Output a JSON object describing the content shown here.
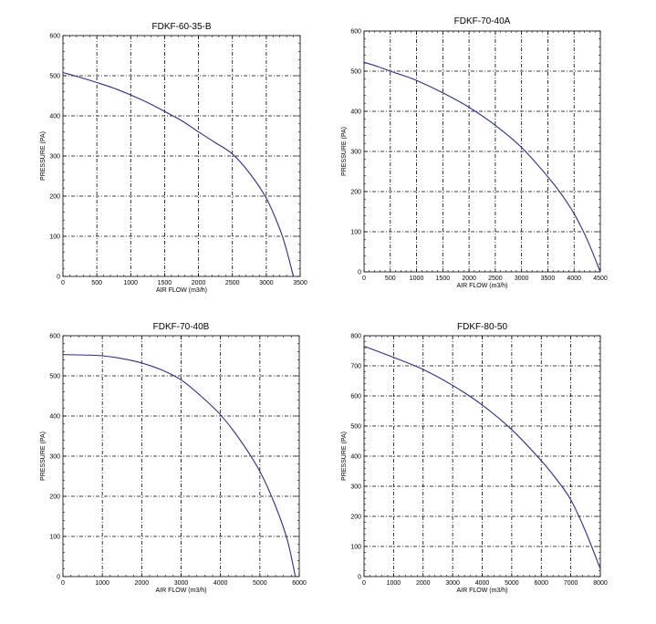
{
  "chart_data": [
    {
      "type": "line",
      "title": "FDKF-60-35-B",
      "xlabel": "AIR FLOW (m3/h)",
      "ylabel": "PRESSURE (PA)",
      "xlim": [
        0,
        3500
      ],
      "ylim": [
        0,
        600
      ],
      "xticks": [
        0,
        500,
        1000,
        1500,
        2000,
        2500,
        3000,
        3500
      ],
      "yticks": [
        0,
        100,
        200,
        300,
        400,
        500,
        600
      ],
      "xtick_labels": [
        "0",
        "500",
        "1000",
        "1500",
        "2000",
        "2500",
        "3000",
        "3500"
      ],
      "ytick_labels": [
        "0",
        "100",
        "200",
        "300",
        "400",
        "500",
        "600"
      ],
      "grid": true,
      "series": [
        {
          "x": [
            0,
            250,
            500,
            750,
            1000,
            1250,
            1500,
            1750,
            2000,
            2250,
            2500,
            2750,
            3000,
            3200,
            3300,
            3400
          ],
          "y": [
            508,
            496,
            483,
            469,
            452,
            433,
            411,
            388,
            360,
            333,
            305,
            258,
            195,
            118,
            65,
            0
          ]
        }
      ]
    },
    {
      "type": "line",
      "title": "FDKF-70-40A",
      "xlabel": "AIR FLOW (m3/h)",
      "ylabel": "PRESSURE (PA)",
      "xlim": [
        0,
        4500
      ],
      "ylim": [
        0,
        600
      ],
      "xticks": [
        0,
        500,
        1000,
        1500,
        2000,
        2500,
        3000,
        3500,
        4000,
        4500
      ],
      "yticks": [
        0,
        100,
        200,
        300,
        400,
        500,
        600
      ],
      "xtick_labels": [
        "0",
        "500",
        "1000",
        "1500",
        "2000",
        "2500",
        "3000",
        "3500",
        "4000",
        "4500"
      ],
      "ytick_labels": [
        "0",
        "100",
        "200",
        "300",
        "400",
        "500",
        "600"
      ],
      "grid": true,
      "series": [
        {
          "x": [
            0,
            250,
            500,
            750,
            1000,
            1500,
            2000,
            2500,
            3000,
            3500,
            3750,
            4000,
            4250,
            4500
          ],
          "y": [
            522,
            512,
            500,
            489,
            477,
            446,
            410,
            365,
            310,
            237,
            195,
            145,
            80,
            0
          ]
        }
      ]
    },
    {
      "type": "line",
      "title": "FDKF-70-40B",
      "xlabel": "AIR FLOW (m3/h)",
      "ylabel": "PRESSURE (PA)",
      "xlim": [
        0,
        6000
      ],
      "ylim": [
        0,
        600
      ],
      "xticks": [
        0,
        1000,
        2000,
        3000,
        4000,
        5000,
        6000
      ],
      "yticks": [
        0,
        100,
        200,
        300,
        400,
        500,
        600
      ],
      "xtick_labels": [
        "0",
        "1000",
        "2000",
        "3000",
        "4000",
        "5000",
        "6000"
      ],
      "ytick_labels": [
        "0",
        "100",
        "200",
        "300",
        "400",
        "500",
        "600"
      ],
      "grid": true,
      "series": [
        {
          "x": [
            0,
            500,
            1000,
            1500,
            2000,
            2500,
            3000,
            3500,
            4000,
            4500,
            5000,
            5400,
            5700,
            5900
          ],
          "y": [
            553,
            552,
            550,
            543,
            532,
            515,
            490,
            450,
            403,
            340,
            262,
            175,
            90,
            0
          ]
        }
      ]
    },
    {
      "type": "line",
      "title": "FDKF-80-50",
      "xlabel": "AIR FLOW (m3/h)",
      "ylabel": "PRESSURE (PA)",
      "xlim": [
        0,
        8000
      ],
      "ylim": [
        0,
        800
      ],
      "xticks": [
        0,
        1000,
        2000,
        3000,
        4000,
        5000,
        6000,
        7000,
        8000
      ],
      "yticks": [
        0,
        100,
        200,
        300,
        400,
        500,
        600,
        700,
        800
      ],
      "xtick_labels": [
        "0",
        "1000",
        "2000",
        "3000",
        "4000",
        "5000",
        "6000",
        "7000",
        "8000"
      ],
      "ytick_labels": [
        "0",
        "100",
        "200",
        "300",
        "400",
        "500",
        "600",
        "700",
        "800"
      ],
      "grid": true,
      "series": [
        {
          "x": [
            0,
            1000,
            2000,
            3000,
            4000,
            5000,
            6000,
            6500,
            7000,
            7500,
            8000
          ],
          "y": [
            765,
            728,
            688,
            635,
            570,
            488,
            385,
            325,
            255,
            150,
            25
          ]
        }
      ]
    }
  ]
}
